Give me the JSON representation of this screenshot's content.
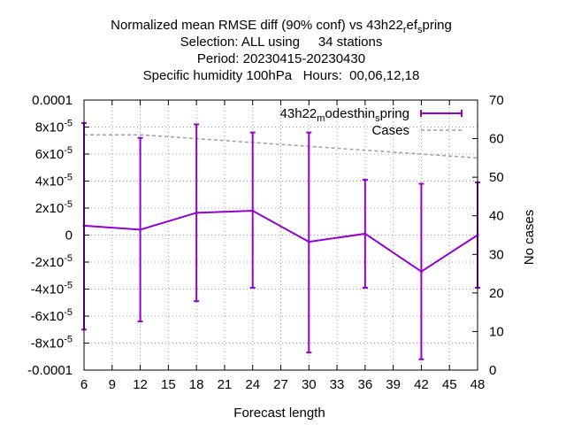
{
  "title": {
    "line1_main": "Normalized mean RMSE diff (90% conf) vs 43h22",
    "line1_sub1": "r",
    "line1_mid": "ef",
    "line1_sub2": "s",
    "line1_end": "pring",
    "line2": "Selection: ALL using     34 stations",
    "line3": "Period: 20230415-20230430",
    "line4": "Specific humidity 100hPa   Hours:  00,06,12,18"
  },
  "chart_data": {
    "type": "line",
    "xlabel": "Forecast length",
    "ylabel": "",
    "y2label": "No cases",
    "xlim": [
      6,
      48
    ],
    "ylim": [
      -0.0001,
      0.0001
    ],
    "y2lim": [
      0,
      70
    ],
    "x_ticks": [
      "6",
      "9",
      "12",
      "15",
      "18",
      "21",
      "24",
      "27",
      "30",
      "33",
      "36",
      "39",
      "42",
      "45",
      "48"
    ],
    "y_ticks": [
      "-0.0001",
      "-8x10-5",
      "-6x10-5",
      "-4x10-5",
      "-2x10-5",
      "0",
      "2x10-5",
      "4x10-5",
      "6x10-5",
      "8x10-5",
      "0.0001"
    ],
    "y2_ticks": [
      "0",
      "10",
      "20",
      "30",
      "40",
      "50",
      "60",
      "70"
    ],
    "grid": true,
    "legend_position": "top-right",
    "series": [
      {
        "name_main": "43h22",
        "name_sub1": "m",
        "name_mid": "odesthin",
        "name_sub2": "s",
        "name_end": "pring",
        "color": "#9400d3",
        "axis": "y",
        "x": [
          6,
          12,
          18,
          24,
          30,
          36,
          42,
          48
        ],
        "y": [
          7e-06,
          4e-06,
          1.65e-05,
          1.8e-05,
          -5e-06,
          1e-06,
          -2.7e-05,
          0
        ],
        "err_low": [
          -7e-05,
          -6.4e-05,
          -4.9e-05,
          -3.9e-05,
          -8.7e-05,
          -3.9e-05,
          -9.2e-05,
          -3.9e-05
        ],
        "err_high": [
          8.3e-05,
          7.2e-05,
          8.2e-05,
          7.6e-05,
          7.6e-05,
          4.1e-05,
          3.8e-05,
          3.9e-05
        ]
      },
      {
        "name": "Cases",
        "color": "#a0a0a0",
        "axis": "y2",
        "x": [
          6,
          12,
          18,
          24,
          30,
          36,
          42,
          48
        ],
        "y": [
          61,
          61,
          60,
          59,
          58,
          57,
          56,
          55
        ]
      }
    ]
  }
}
